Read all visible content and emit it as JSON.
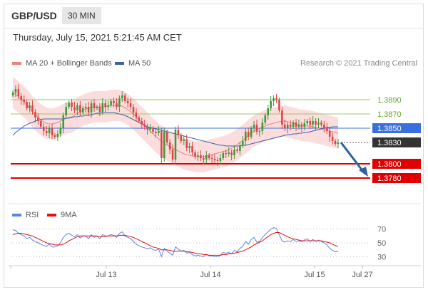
{
  "header": {
    "symbol": "GBP/USD",
    "timeframe": "30 MIN"
  },
  "timestamp": "Thursday, July 15, 2021 5:21:45 AM CET",
  "legend": {
    "ma_bb": "MA 20 + Bollinger Bands",
    "ma50": "MA 50",
    "rsi": "RSI",
    "ma9": "9MA"
  },
  "credit": "Research © 2021 Trading Central",
  "colors": {
    "bb_band": "#fcd7d7",
    "ma20": "#f08080",
    "ma50": "#3e62a8",
    "up": "#3a9a3a",
    "down": "#d94545",
    "support": "#e00000",
    "resistance": "#9bc76a",
    "pivot": "#3b6fe0",
    "current": "#333333",
    "rsi": "#5a86e0",
    "ma9": "#e01010",
    "arrow": "#2f5f9e"
  },
  "chart_data": [
    {
      "type": "candlestick",
      "price_range": [
        1.3747,
        1.3922
      ],
      "x_tick_labels": [
        "Jul 13",
        "Jul 14",
        "Jul 15",
        "Jul 27"
      ],
      "levels": [
        {
          "label": "1.3890",
          "value": 1.389,
          "kind": "resistance"
        },
        {
          "label": "1.3870",
          "value": 1.387,
          "kind": "resistance"
        },
        {
          "label": "1.3850",
          "value": 1.385,
          "kind": "pivot"
        },
        {
          "label": "1.3830",
          "value": 1.383,
          "kind": "current"
        },
        {
          "label": "1.3800",
          "value": 1.38,
          "kind": "support"
        },
        {
          "label": "1.3780",
          "value": 1.378,
          "kind": "support"
        }
      ],
      "close": [
        1.39,
        1.3905,
        1.3895,
        1.389,
        1.3887,
        1.3878,
        1.3882,
        1.3873,
        1.3865,
        1.386,
        1.3852,
        1.3846,
        1.3843,
        1.385,
        1.384,
        1.3838,
        1.3842,
        1.385,
        1.3868,
        1.388,
        1.3886,
        1.388,
        1.3875,
        1.3882,
        1.3872,
        1.3878,
        1.388,
        1.3872,
        1.3885,
        1.3878,
        1.388,
        1.3873,
        1.3885,
        1.388,
        1.3882,
        1.3888,
        1.3885,
        1.388,
        1.3892,
        1.3896,
        1.3888,
        1.3885,
        1.388,
        1.3872,
        1.3865,
        1.386,
        1.3855,
        1.3852,
        1.3848,
        1.385,
        1.3845,
        1.3843,
        1.3846,
        1.3808,
        1.3845,
        1.383,
        1.382,
        1.3806,
        1.3848,
        1.384,
        1.3832,
        1.3834,
        1.3822,
        1.3825,
        1.3816,
        1.381,
        1.3812,
        1.3808,
        1.3806,
        1.3812,
        1.3808,
        1.3807,
        1.3805,
        1.3804,
        1.3808,
        1.3815,
        1.3814,
        1.3816,
        1.3812,
        1.382,
        1.3818,
        1.3826,
        1.3832,
        1.3845,
        1.3838,
        1.385,
        1.3855,
        1.3845,
        1.3846,
        1.3858,
        1.3868,
        1.3878,
        1.3888,
        1.3892,
        1.389,
        1.3875,
        1.3855,
        1.385,
        1.3855,
        1.3852,
        1.3858,
        1.3852,
        1.3855,
        1.3852,
        1.3857,
        1.386,
        1.3855,
        1.386,
        1.3855,
        1.3858,
        1.3855,
        1.385,
        1.3846,
        1.3838,
        1.3832,
        1.3828,
        1.383
      ],
      "ma20": [
        1.39,
        1.3897,
        1.3894,
        1.389,
        1.3887,
        1.3883,
        1.3878,
        1.3873,
        1.3869,
        1.3865,
        1.3862,
        1.3859,
        1.3857,
        1.3856,
        1.3856,
        1.3857,
        1.3858,
        1.386,
        1.3862,
        1.3864,
        1.3865,
        1.3866,
        1.3868,
        1.3871,
        1.3873,
        1.3875,
        1.3877,
        1.3878,
        1.3879,
        1.388,
        1.388,
        1.388,
        1.388,
        1.388,
        1.3881,
        1.3882,
        1.3882,
        1.3882,
        1.3882,
        1.3881,
        1.3879,
        1.3876,
        1.3873,
        1.387,
        1.3866,
        1.3862,
        1.3858,
        1.3854,
        1.385,
        1.3846,
        1.3842,
        1.3838,
        1.3835,
        1.3832,
        1.3829,
        1.3826,
        1.3824,
        1.3822,
        1.382,
        1.3818,
        1.3816,
        1.3814,
        1.3813,
        1.3812,
        1.3811,
        1.381,
        1.381,
        1.381,
        1.381,
        1.3811,
        1.3812,
        1.3813,
        1.3814,
        1.3815,
        1.3816,
        1.3817,
        1.3818,
        1.382,
        1.3822,
        1.3824,
        1.3827,
        1.383,
        1.3833,
        1.3836,
        1.384,
        1.3843,
        1.3846,
        1.3848,
        1.385,
        1.3852,
        1.3853,
        1.3855,
        1.3856,
        1.3857,
        1.3858,
        1.3859,
        1.386,
        1.386,
        1.3859,
        1.3858,
        1.3857,
        1.3856,
        1.3855,
        1.3854,
        1.3854,
        1.3853,
        1.3853,
        1.3852,
        1.3851,
        1.385,
        1.3849,
        1.3848,
        1.3847,
        1.3846,
        1.3845,
        1.3844,
        1.3843
      ],
      "ma50": [
        1.384,
        1.3844,
        1.3847,
        1.385,
        1.3853,
        1.3855,
        1.3857,
        1.3858,
        1.386,
        1.3861,
        1.3862,
        1.3863,
        1.3863,
        1.3863,
        1.3863,
        1.3863,
        1.3863,
        1.3863,
        1.3863,
        1.3864,
        1.3864,
        1.3865,
        1.3866,
        1.3866,
        1.3867,
        1.3867,
        1.3868,
        1.3868,
        1.3869,
        1.387,
        1.3871,
        1.3871,
        1.3872,
        1.3872,
        1.3872,
        1.3872,
        1.3872,
        1.3871,
        1.387,
        1.3869,
        1.3868,
        1.3866,
        1.3864,
        1.3862,
        1.386,
        1.3858,
        1.3856,
        1.3854,
        1.3852,
        1.3851,
        1.385,
        1.3849,
        1.3848,
        1.3847,
        1.3846,
        1.3845,
        1.3844,
        1.3843,
        1.3842,
        1.3841,
        1.384,
        1.3839,
        1.3838,
        1.3837,
        1.3836,
        1.3835,
        1.3834,
        1.3833,
        1.3832,
        1.3831,
        1.383,
        1.3829,
        1.3828,
        1.3827,
        1.3826,
        1.3826,
        1.3825,
        1.3825,
        1.3825,
        1.3825,
        1.3825,
        1.3825,
        1.3826,
        1.3826,
        1.3827,
        1.3828,
        1.3829,
        1.383,
        1.3831,
        1.3832,
        1.3833,
        1.3834,
        1.3835,
        1.3836,
        1.3837,
        1.3838,
        1.3839,
        1.384,
        1.3841,
        1.3841,
        1.3842,
        1.3842,
        1.3843,
        1.3843,
        1.3844,
        1.3844,
        1.3845,
        1.3846,
        1.3847,
        1.3848,
        1.3849,
        1.385,
        1.3851,
        1.3851,
        1.3852,
        1.3852,
        1.3852
      ],
      "bb_width": 0.0022
    },
    {
      "type": "line",
      "title": "RSI",
      "y_range": [
        20,
        80
      ],
      "y_tick_labels": [
        "70",
        "50",
        "30"
      ],
      "y_ticks": [
        70,
        50,
        30
      ],
      "series": [
        {
          "name": "RSI",
          "values": [
            69,
            68,
            64,
            62,
            60,
            56,
            58,
            54,
            52,
            50,
            48,
            46,
            45,
            48,
            44,
            44,
            46,
            50,
            58,
            62,
            64,
            61,
            59,
            62,
            57,
            60,
            60,
            56,
            62,
            58,
            60,
            56,
            62,
            60,
            60,
            62,
            61,
            58,
            64,
            66,
            60,
            58,
            56,
            52,
            48,
            46,
            44,
            43,
            41,
            43,
            40,
            39,
            41,
            30,
            42,
            38,
            35,
            32,
            44,
            41,
            38,
            39,
            35,
            36,
            33,
            31,
            32,
            31,
            30,
            33,
            31,
            31,
            30,
            30,
            32,
            36,
            35,
            36,
            34,
            39,
            37,
            42,
            45,
            52,
            48,
            55,
            58,
            51,
            52,
            58,
            62,
            66,
            70,
            72,
            71,
            62,
            53,
            51,
            53,
            52,
            55,
            52,
            53,
            52,
            54,
            56,
            52,
            55,
            52,
            54,
            52,
            50,
            47,
            42,
            39,
            37,
            38
          ]
        },
        {
          "name": "9MA",
          "values": [
            62,
            63,
            64,
            64,
            63,
            62,
            61,
            60,
            58,
            56,
            54,
            52,
            50,
            49,
            48,
            47,
            47,
            47,
            48,
            50,
            53,
            55,
            57,
            59,
            60,
            60,
            60,
            60,
            60,
            60,
            60,
            59,
            59,
            59,
            60,
            60,
            60,
            60,
            61,
            61,
            61,
            60,
            59,
            58,
            56,
            54,
            52,
            50,
            48,
            46,
            44,
            43,
            42,
            40,
            40,
            40,
            39,
            38,
            38,
            38,
            38,
            38,
            37,
            37,
            36,
            35,
            34,
            34,
            33,
            33,
            32,
            32,
            32,
            32,
            32,
            33,
            33,
            34,
            34,
            35,
            36,
            37,
            38,
            40,
            42,
            44,
            47,
            49,
            51,
            53,
            56,
            59,
            62,
            64,
            65,
            65,
            63,
            61,
            59,
            57,
            56,
            55,
            54,
            53,
            53,
            53,
            53,
            53,
            53,
            53,
            53,
            52,
            51,
            50,
            48,
            46,
            45
          ]
        }
      ]
    }
  ]
}
